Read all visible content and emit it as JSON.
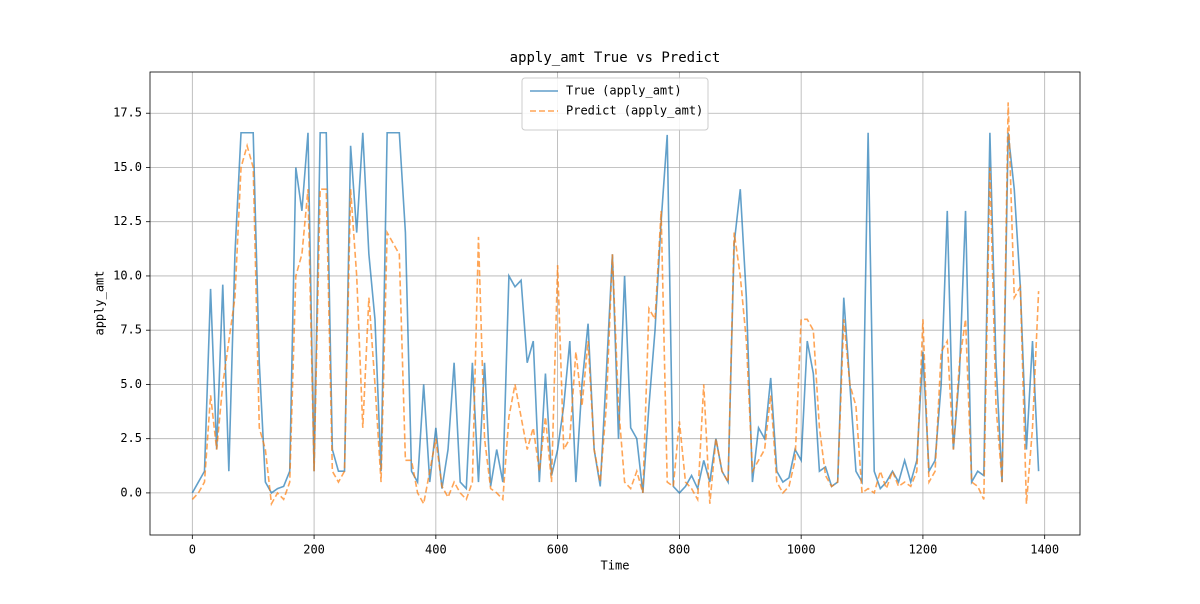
{
  "chart_data": {
    "type": "line",
    "title": "apply_amt True vs Predict",
    "xlabel": "Time",
    "ylabel": "apply_amt",
    "x": [
      0,
      10,
      20,
      30,
      40,
      50,
      60,
      70,
      80,
      90,
      100,
      110,
      120,
      130,
      140,
      150,
      160,
      170,
      180,
      190,
      200,
      210,
      220,
      230,
      240,
      250,
      260,
      270,
      280,
      290,
      300,
      310,
      320,
      330,
      340,
      350,
      360,
      370,
      380,
      390,
      400,
      410,
      420,
      430,
      440,
      450,
      460,
      470,
      480,
      490,
      500,
      510,
      520,
      530,
      540,
      550,
      560,
      570,
      580,
      590,
      600,
      610,
      620,
      630,
      640,
      650,
      660,
      670,
      680,
      690,
      700,
      710,
      720,
      730,
      740,
      750,
      760,
      770,
      780,
      790,
      800,
      810,
      820,
      830,
      840,
      850,
      860,
      870,
      880,
      890,
      900,
      910,
      920,
      930,
      940,
      950,
      960,
      970,
      980,
      990,
      1000,
      1010,
      1020,
      1030,
      1040,
      1050,
      1060,
      1070,
      1080,
      1090,
      1100,
      1110,
      1120,
      1130,
      1140,
      1150,
      1160,
      1170,
      1180,
      1190,
      1200,
      1210,
      1220,
      1230,
      1240,
      1250,
      1260,
      1270,
      1280,
      1290,
      1300,
      1310,
      1320,
      1330,
      1340,
      1350,
      1360,
      1370,
      1380,
      1390
    ],
    "series": [
      {
        "name": "True (apply_amt)",
        "color": "#1f77b4",
        "linestyle": "solid",
        "values": [
          0,
          0.5,
          1,
          9.4,
          2,
          9.6,
          1,
          11,
          16.6,
          16.6,
          16.6,
          6,
          0.5,
          0,
          0.2,
          0.3,
          1,
          15,
          13,
          16.6,
          1,
          16.6,
          16.6,
          2,
          1,
          1,
          16,
          12,
          16.6,
          11,
          8,
          1,
          16.6,
          16.6,
          16.6,
          12,
          1,
          0.5,
          5,
          0.5,
          3,
          0.2,
          2,
          6,
          0.5,
          0.2,
          6,
          0.5,
          6,
          0.3,
          2,
          0.5,
          10,
          9.5,
          9.8,
          6,
          7,
          0.5,
          5.5,
          0.8,
          2,
          4,
          7,
          0.5,
          5,
          7.8,
          2,
          0.3,
          5.5,
          11,
          2.5,
          10,
          3,
          2.5,
          0,
          4,
          7.5,
          12.5,
          16.5,
          0.3,
          0,
          0.3,
          0.8,
          0.2,
          1.5,
          0.5,
          2.5,
          1,
          0.5,
          11.5,
          14,
          9,
          0.5,
          3,
          2.5,
          5.3,
          1,
          0.5,
          0.7,
          2,
          1.5,
          7,
          5.5,
          1,
          1.2,
          0.3,
          0.5,
          9,
          5,
          1,
          0.5,
          16.6,
          1,
          0.2,
          0.5,
          1,
          0.5,
          1.5,
          0.5,
          1.5,
          6.5,
          1,
          1.5,
          5,
          13,
          2,
          5.5,
          13,
          0.5,
          1,
          0.8,
          16.6,
          6,
          0.5,
          16.6,
          14,
          9.5,
          2,
          7,
          1
        ]
      },
      {
        "name": "Predict (apply_amt)",
        "color": "#ff7f0e",
        "linestyle": "dashed",
        "values": [
          -0.3,
          0,
          0.5,
          4.5,
          2,
          5,
          7,
          9,
          15,
          16,
          15,
          3,
          2,
          -0.5,
          0,
          -0.3,
          0.5,
          10,
          11,
          14,
          1,
          14,
          14,
          1,
          0.5,
          1,
          14,
          10,
          3,
          9,
          5,
          0.5,
          12,
          11.5,
          11,
          1.5,
          1.5,
          0,
          -0.5,
          1,
          2.5,
          0.3,
          -0.2,
          0.5,
          0,
          -0.3,
          0.5,
          11.8,
          2.5,
          0.2,
          0,
          -0.3,
          3.5,
          5,
          3.5,
          2,
          3,
          1,
          3.5,
          0.5,
          10.5,
          2,
          2.5,
          6.5,
          4,
          7,
          2,
          0.5,
          4,
          11,
          4,
          0.5,
          0.2,
          1,
          0,
          8.5,
          8,
          13,
          0.5,
          0.3,
          3.3,
          0.5,
          0.2,
          -0.3,
          5,
          -0.5,
          2.5,
          1,
          0.5,
          12,
          10,
          7,
          1,
          1.5,
          2,
          4.5,
          0.5,
          0,
          0.3,
          1.5,
          8,
          8,
          7.5,
          3,
          0.8,
          0.3,
          0.5,
          8,
          5,
          4,
          0,
          0.2,
          0,
          1,
          0.2,
          1,
          0.3,
          0.5,
          0.3,
          1,
          8,
          0.5,
          1,
          6.5,
          7,
          2,
          6,
          8,
          0.5,
          0.3,
          -0.3,
          15,
          4,
          0.5,
          18,
          9,
          9.5,
          -0.5,
          3,
          9.3
        ]
      }
    ],
    "xlim": [
      -69.5,
      1458
    ],
    "ylim": [
      -1.94,
      19.4
    ],
    "xticks": [
      0,
      200,
      400,
      600,
      800,
      1000,
      1200,
      1400
    ],
    "yticks": [
      {
        "value": 0,
        "label": "0.0"
      },
      2.5,
      {
        "value": 5,
        "label": "5.0"
      },
      7.5,
      {
        "value": 10,
        "label": "10.0"
      },
      12.5,
      {
        "value": 15,
        "label": "15.0"
      },
      17.5
    ],
    "grid": true,
    "legend": "upper center"
  }
}
